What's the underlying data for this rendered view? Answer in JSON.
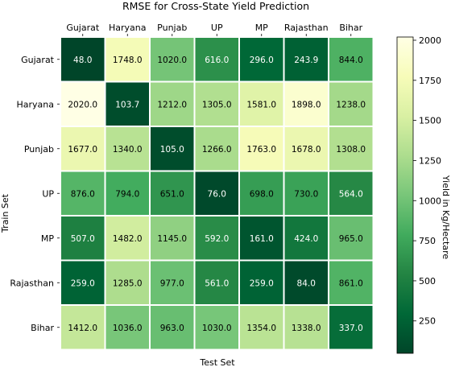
{
  "chart_data": {
    "type": "heatmap",
    "title": "RMSE for Cross-State Yield Prediction",
    "xlabel": "Test Set",
    "ylabel": "Train Set",
    "x_categories": [
      "Gujarat",
      "Haryana",
      "Punjab",
      "UP",
      "MP",
      "Rajasthan",
      "Bihar"
    ],
    "y_categories": [
      "Gujarat",
      "Haryana",
      "Punjab",
      "UP",
      "MP",
      "Rajasthan",
      "Bihar"
    ],
    "values": [
      [
        48.0,
        1748.0,
        1020.0,
        616.0,
        296.0,
        243.9,
        844.0
      ],
      [
        2020.0,
        103.7,
        1212.0,
        1305.0,
        1581.0,
        1898.0,
        1238.0
      ],
      [
        1677.0,
        1340.0,
        105.0,
        1266.0,
        1763.0,
        1678.0,
        1308.0
      ],
      [
        876.0,
        794.0,
        651.0,
        76.0,
        698.0,
        730.0,
        564.0
      ],
      [
        507.0,
        1482.0,
        1145.0,
        592.0,
        161.0,
        424.0,
        965.0
      ],
      [
        259.0,
        1285.0,
        977.0,
        561.0,
        259.0,
        84.0,
        861.0
      ],
      [
        1412.0,
        1036.0,
        963.0,
        1030.0,
        1354.0,
        1338.0,
        337.0
      ]
    ],
    "value_labels": [
      [
        "48.0",
        "1748.0",
        "1020.0",
        "616.0",
        "296.0",
        "243.9",
        "844.0"
      ],
      [
        "2020.0",
        "103.7",
        "1212.0",
        "1305.0",
        "1581.0",
        "1898.0",
        "1238.0"
      ],
      [
        "1677.0",
        "1340.0",
        "105.0",
        "1266.0",
        "1763.0",
        "1678.0",
        "1308.0"
      ],
      [
        "876.0",
        "794.0",
        "651.0",
        "76.0",
        "698.0",
        "730.0",
        "564.0"
      ],
      [
        "507.0",
        "1482.0",
        "1145.0",
        "592.0",
        "161.0",
        "424.0",
        "965.0"
      ],
      [
        "259.0",
        "1285.0",
        "977.0",
        "561.0",
        "259.0",
        "84.0",
        "861.0"
      ],
      [
        "1412.0",
        "1036.0",
        "963.0",
        "1030.0",
        "1354.0",
        "1338.0",
        "337.0"
      ]
    ],
    "colorbar": {
      "label": "Yield in Kg/Hectare",
      "colormap": "YlGn_r",
      "vmin": 48.0,
      "vmax": 2020.0,
      "ticks": [
        250,
        500,
        750,
        1000,
        1250,
        1500,
        1750,
        2000
      ],
      "tick_labels": [
        "250",
        "500",
        "750",
        "1000",
        "1250",
        "1500",
        "1750",
        "2000"
      ]
    },
    "x_tick_position": "top",
    "grid": false
  }
}
